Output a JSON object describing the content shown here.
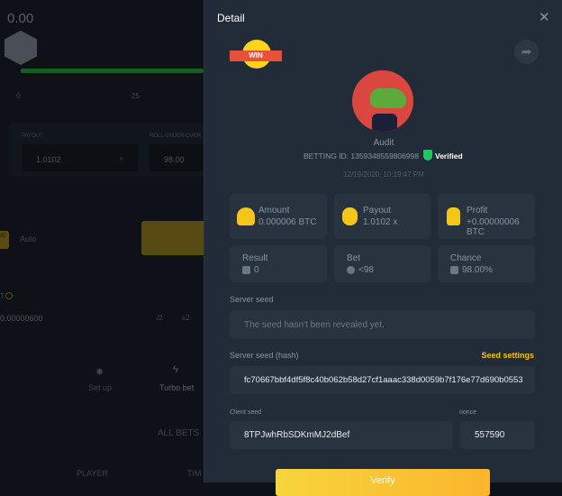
{
  "background": {
    "balance": "0.00",
    "scale": [
      "0",
      "25"
    ],
    "payout_label": "PAYOUT",
    "payout_value": "1.0102",
    "payout_unit": "x",
    "roll_label": "ROLL UNDER/OVER",
    "roll_value": "98.00",
    "manual_label": "al",
    "auto_label": "Auto",
    "bet_label": "T",
    "bet_value": "0.00000600",
    "half": "/2",
    "double": "x2",
    "setup": "Set up",
    "turbo": "Turbo bet",
    "all_bets": "ALL BETS",
    "col_player": "PLAYER",
    "col_time": "TIM"
  },
  "detail": {
    "title": "Detail",
    "badge": "WIN",
    "username": "Audit",
    "betting_id": "BETTING ID: 1359348559806998",
    "verified": "Verified",
    "timestamp": "12/19/2020, 10:19:47 PM",
    "cards": [
      {
        "label": "Amount",
        "value": "0.000006 BTC",
        "icon": "hand-coin-icon"
      },
      {
        "label": "Payout",
        "value": "1.0102 x",
        "icon": "coin-stack-icon"
      },
      {
        "label": "Profit",
        "value": "+0.00000006 BTC",
        "icon": "money-bag-icon"
      },
      {
        "label": "Result",
        "value": "0",
        "icon": "dice-icon"
      },
      {
        "label": "Bet",
        "value": "<98",
        "icon": "chip-icon"
      },
      {
        "label": "Chance",
        "value": "98.00%",
        "icon": "dice-icon"
      }
    ],
    "server_seed_label": "Server seed",
    "server_seed_value": "The seed hasn't been revealed yet.",
    "hash_label": "Server seed (hash)",
    "seed_settings": "Seed settings",
    "hash_value": "fc70667bbf4df5f8c40b062b58d27cf1aaac338d0059b7f176e77d690b0553",
    "client_seed_label": "Client seed",
    "client_seed_value": "8TPJwhRbSDKmMJ2dBef",
    "nonce_label": "nonce",
    "nonce_value": "557590",
    "verify": "Verify"
  },
  "colors": {
    "accent": "#f5c518",
    "verified": "#22c55e",
    "panel": "#222c38"
  }
}
